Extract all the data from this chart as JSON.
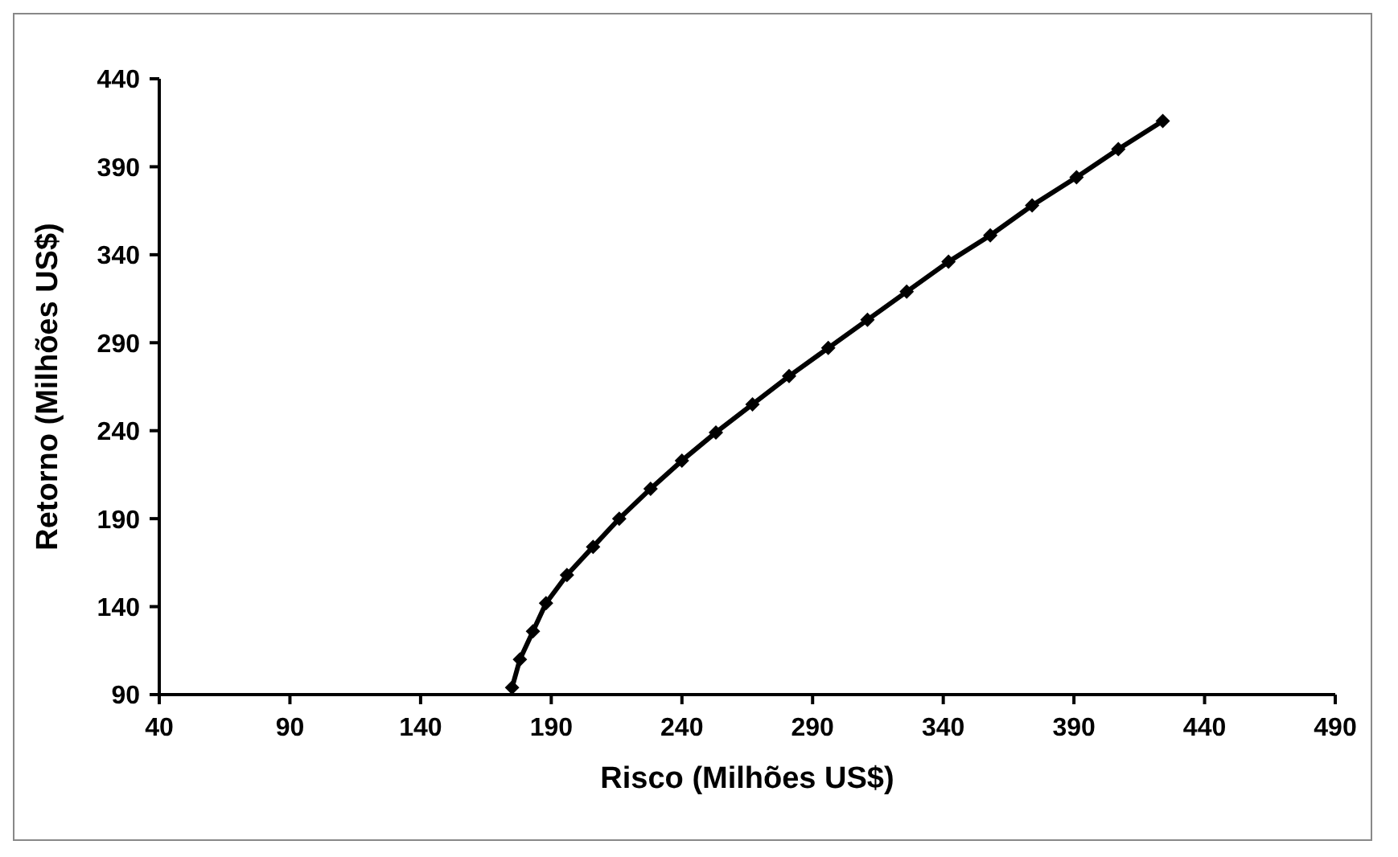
{
  "chart_data": {
    "type": "line",
    "xlabel": "Risco (Milhões US$)",
    "ylabel": "Retorno (Milhões US$)",
    "x": [
      175,
      178,
      183,
      188,
      196,
      206,
      216,
      228,
      240,
      253,
      267,
      281,
      296,
      311,
      326,
      342,
      358,
      374,
      391,
      407,
      424
    ],
    "series": [
      {
        "color": "#000000",
        "values": [
          94,
          110,
          126,
          142,
          158,
          174,
          190,
          207,
          223,
          239,
          255,
          271,
          287,
          303,
          319,
          336,
          351,
          368,
          384,
          400,
          416
        ]
      }
    ],
    "xlim": [
      40,
      490
    ],
    "xticks": [
      40,
      90,
      140,
      190,
      240,
      290,
      340,
      390,
      440,
      490
    ],
    "ylim": [
      90,
      440
    ],
    "yticks": [
      90,
      140,
      190,
      240,
      290,
      340,
      390,
      440
    ],
    "grid": false,
    "legend": false,
    "marker": "diamond",
    "line_style": "solid"
  }
}
